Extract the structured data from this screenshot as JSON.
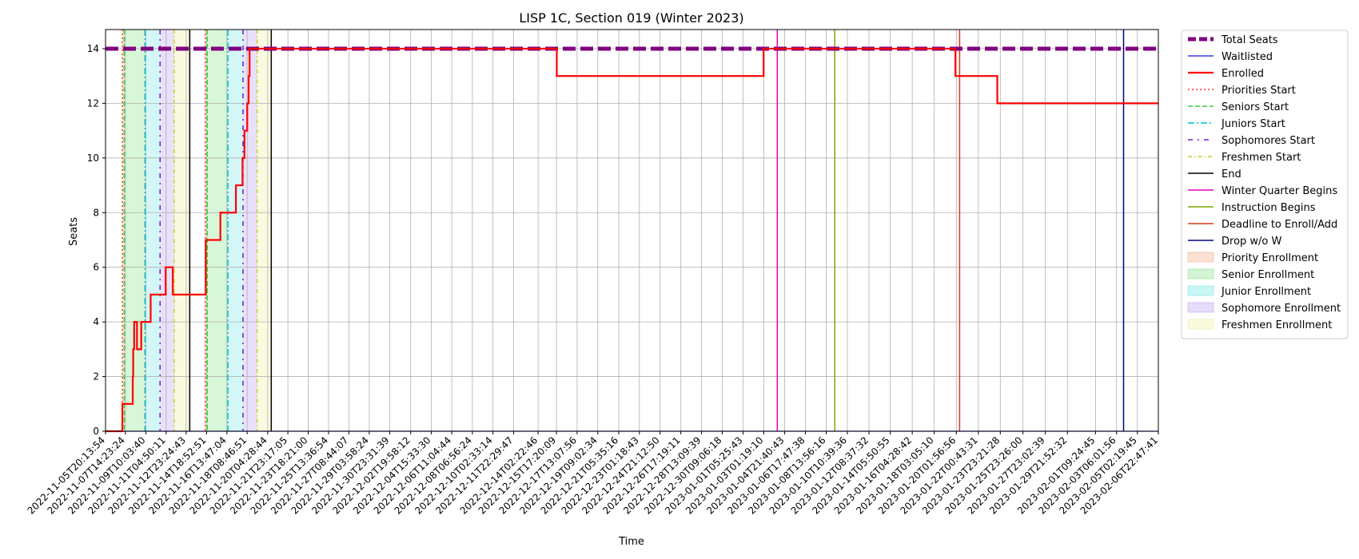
{
  "chart_data": {
    "type": "line",
    "title": "LISP 1C, Section 019 (Winter 2023)",
    "xlabel": "Time",
    "ylabel": "Seats",
    "ylim": [
      0,
      14.7
    ],
    "xlim": [
      "2022-11-05T20:13:54",
      "2023-02-06T22:47:41"
    ],
    "grid": true,
    "legend_position": "outside-right",
    "x_tick_labels": [
      "2022-11-05T20:13:54",
      "2022-11-07T14:23:24",
      "2022-11-09T10:03:40",
      "2022-11-11T04:50:11",
      "2022-11-12T23:24:43",
      "2022-11-14T18:52:51",
      "2022-11-16T13:47:04",
      "2022-11-18T08:46:51",
      "2022-11-20T04:28:44",
      "2022-11-21T23:17:05",
      "2022-11-23T18:21:00",
      "2022-11-25T13:36:54",
      "2022-11-27T08:44:07",
      "2022-11-29T03:58:24",
      "2022-11-30T23:31:39",
      "2022-12-02T19:58:12",
      "2022-12-04T15:33:30",
      "2022-12-06T11:04:44",
      "2022-12-08T06:56:24",
      "2022-12-10T02:33:14",
      "2022-12-11T22:29:47",
      "2022-12-14T02:22:46",
      "2022-12-15T17:20:09",
      "2022-12-17T13:07:56",
      "2022-12-19T09:02:34",
      "2022-12-21T05:35:16",
      "2022-12-23T01:18:43",
      "2022-12-24T21:12:50",
      "2022-12-26T17:19:11",
      "2022-12-28T13:09:39",
      "2022-12-30T09:06:18",
      "2023-01-01T05:25:43",
      "2023-01-03T01:19:10",
      "2023-01-04T21:40:43",
      "2023-01-06T17:47:38",
      "2023-01-08T13:56:16",
      "2023-01-10T10:39:36",
      "2023-01-12T08:37:32",
      "2023-01-14T05:50:55",
      "2023-01-16T04:28:42",
      "2023-01-18T03:05:10",
      "2023-01-20T01:56:56",
      "2023-01-22T00:43:31",
      "2023-01-23T23:21:28",
      "2023-01-25T23:26:00",
      "2023-01-27T23:02:39",
      "2023-01-29T21:52:32",
      "2023-02-01T09:24:45",
      "2023-02-03T06:01:56",
      "2023-02-05T02:19:45",
      "2023-02-06T22:47:41"
    ],
    "y_ticks": [
      0,
      2,
      4,
      6,
      8,
      10,
      12,
      14
    ],
    "y_tick_labels": [
      "0",
      "2",
      "4",
      "6",
      "8",
      "10",
      "12",
      "14"
    ],
    "series": [
      {
        "name": "Total Seats",
        "color": "#800080",
        "style": "dashed-thick",
        "x": [
          "2022-11-05T20:13:54",
          "2023-02-06T22:47:41"
        ],
        "y": [
          14,
          14
        ]
      },
      {
        "name": "Waitlisted",
        "color": "#3a3aee",
        "style": "solid",
        "x": [
          "2022-11-05T20:13:54",
          "2023-02-06T22:47:41"
        ],
        "y": [
          0,
          0
        ]
      },
      {
        "name": "Enrolled",
        "color": "#ff0000",
        "style": "step",
        "x": [
          "2022-11-05T20:13:54",
          "2022-11-07T08:00:00",
          "2022-11-07T08:30:00",
          "2022-11-08T06:00:00",
          "2022-11-08T07:00:00",
          "2022-11-08T09:00:00",
          "2022-11-08T13:00:00",
          "2022-11-08T15:00:00",
          "2022-11-08T23:00:00",
          "2022-11-09T00:00:00",
          "2022-11-09T02:00:00",
          "2022-11-09T20:00:00",
          "2022-11-10T06:00:00",
          "2022-11-11T04:00:00",
          "2022-11-11T19:00:00",
          "2022-11-12T08:00:00",
          "2022-11-12T09:00:00",
          "2022-11-14T17:00:00",
          "2022-11-15T01:00:00",
          "2022-11-16T00:00:00",
          "2022-11-17T00:00:00",
          "2022-11-17T09:00:00",
          "2022-11-17T23:00:00",
          "2022-11-18T03:00:00",
          "2022-11-18T05:00:00",
          "2022-11-18T09:00:00",
          "2022-11-18T12:00:00",
          "2022-11-18T14:00:00",
          "2022-11-21T23:00:00",
          "2022-12-15T18:00:00",
          "2023-01-03T01:00:00",
          "2023-01-20T00:00:00",
          "2023-01-23T17:00:00",
          "2023-02-06T22:47:41"
        ],
        "y": [
          0,
          1,
          1,
          2,
          3,
          4,
          4,
          3,
          3,
          4,
          4,
          5,
          5,
          6,
          5,
          5,
          5,
          7,
          7,
          8,
          8,
          9,
          10,
          11,
          11,
          12,
          13,
          14,
          14,
          13,
          14,
          13,
          12,
          12
        ]
      }
    ],
    "vertical_lines": [
      {
        "name": "Priorities Start",
        "color": "#ff3333",
        "style": "dotted",
        "x": [
          "2022-11-07T08:00:00",
          "2022-11-14T16:00:00"
        ]
      },
      {
        "name": "Seniors Start",
        "color": "#33cc33",
        "style": "dashed",
        "x": [
          "2022-11-07T12:00:00",
          "2022-11-14T20:00:00"
        ]
      },
      {
        "name": "Juniors Start",
        "color": "#00bfbf",
        "style": "dashdot",
        "x": [
          "2022-11-09T08:00:00",
          "2022-11-16T16:00:00"
        ]
      },
      {
        "name": "Sophomores Start",
        "color": "#6a1fd0",
        "style": "loose-dashdot",
        "x": [
          "2022-11-10T16:00:00",
          "2022-11-18T00:00:00"
        ]
      },
      {
        "name": "Freshmen Start",
        "color": "#cccc33",
        "style": "dashdot-small",
        "x": [
          "2022-11-11T22:00:00",
          "2022-11-19T06:00:00"
        ]
      },
      {
        "name": "End",
        "color": "#000000",
        "style": "solid",
        "x": [
          "2022-11-13T07:00:00",
          "2022-11-20T12:00:00"
        ]
      },
      {
        "name": "Winter Quarter Begins",
        "color": "#e600b8",
        "style": "solid",
        "x": [
          "2023-01-04T06:00:00"
        ]
      },
      {
        "name": "Instruction Begins",
        "color": "#7fa800",
        "style": "solid",
        "x": [
          "2023-01-09T08:00:00"
        ]
      },
      {
        "name": "Deadline to Enroll/Add",
        "color": "#d63a1a",
        "style": "solid",
        "x": [
          "2023-01-20T09:00:00"
        ]
      },
      {
        "name": "Drop w/o W",
        "color": "#00008b",
        "style": "solid",
        "x": [
          "2023-02-03T21:00:00"
        ]
      }
    ],
    "shaded_regions": [
      {
        "name": "Priority Enrollment",
        "color": "#f4a582",
        "ranges": [
          [
            "2022-11-07T08:00:00",
            "2022-11-07T12:00:00"
          ],
          [
            "2022-11-14T16:00:00",
            "2022-11-14T20:00:00"
          ]
        ]
      },
      {
        "name": "Senior Enrollment",
        "color": "#7fe07f",
        "ranges": [
          [
            "2022-11-07T12:00:00",
            "2022-11-09T08:00:00"
          ],
          [
            "2022-11-14T20:00:00",
            "2022-11-16T16:00:00"
          ]
        ]
      },
      {
        "name": "Junior Enrollment",
        "color": "#6ee3e3",
        "ranges": [
          [
            "2022-11-09T08:00:00",
            "2022-11-10T16:00:00"
          ],
          [
            "2022-11-16T16:00:00",
            "2022-11-18T00:00:00"
          ]
        ]
      },
      {
        "name": "Sophomore Enrollment",
        "color": "#b699ee",
        "ranges": [
          [
            "2022-11-10T16:00:00",
            "2022-11-11T22:00:00"
          ],
          [
            "2022-11-18T00:00:00",
            "2022-11-19T06:00:00"
          ]
        ]
      },
      {
        "name": "Freshmen Enrollment",
        "color": "#eeee99",
        "ranges": [
          [
            "2022-11-11T22:00:00",
            "2022-11-13T07:00:00"
          ],
          [
            "2022-11-19T06:00:00",
            "2022-11-20T12:00:00"
          ]
        ]
      }
    ]
  }
}
